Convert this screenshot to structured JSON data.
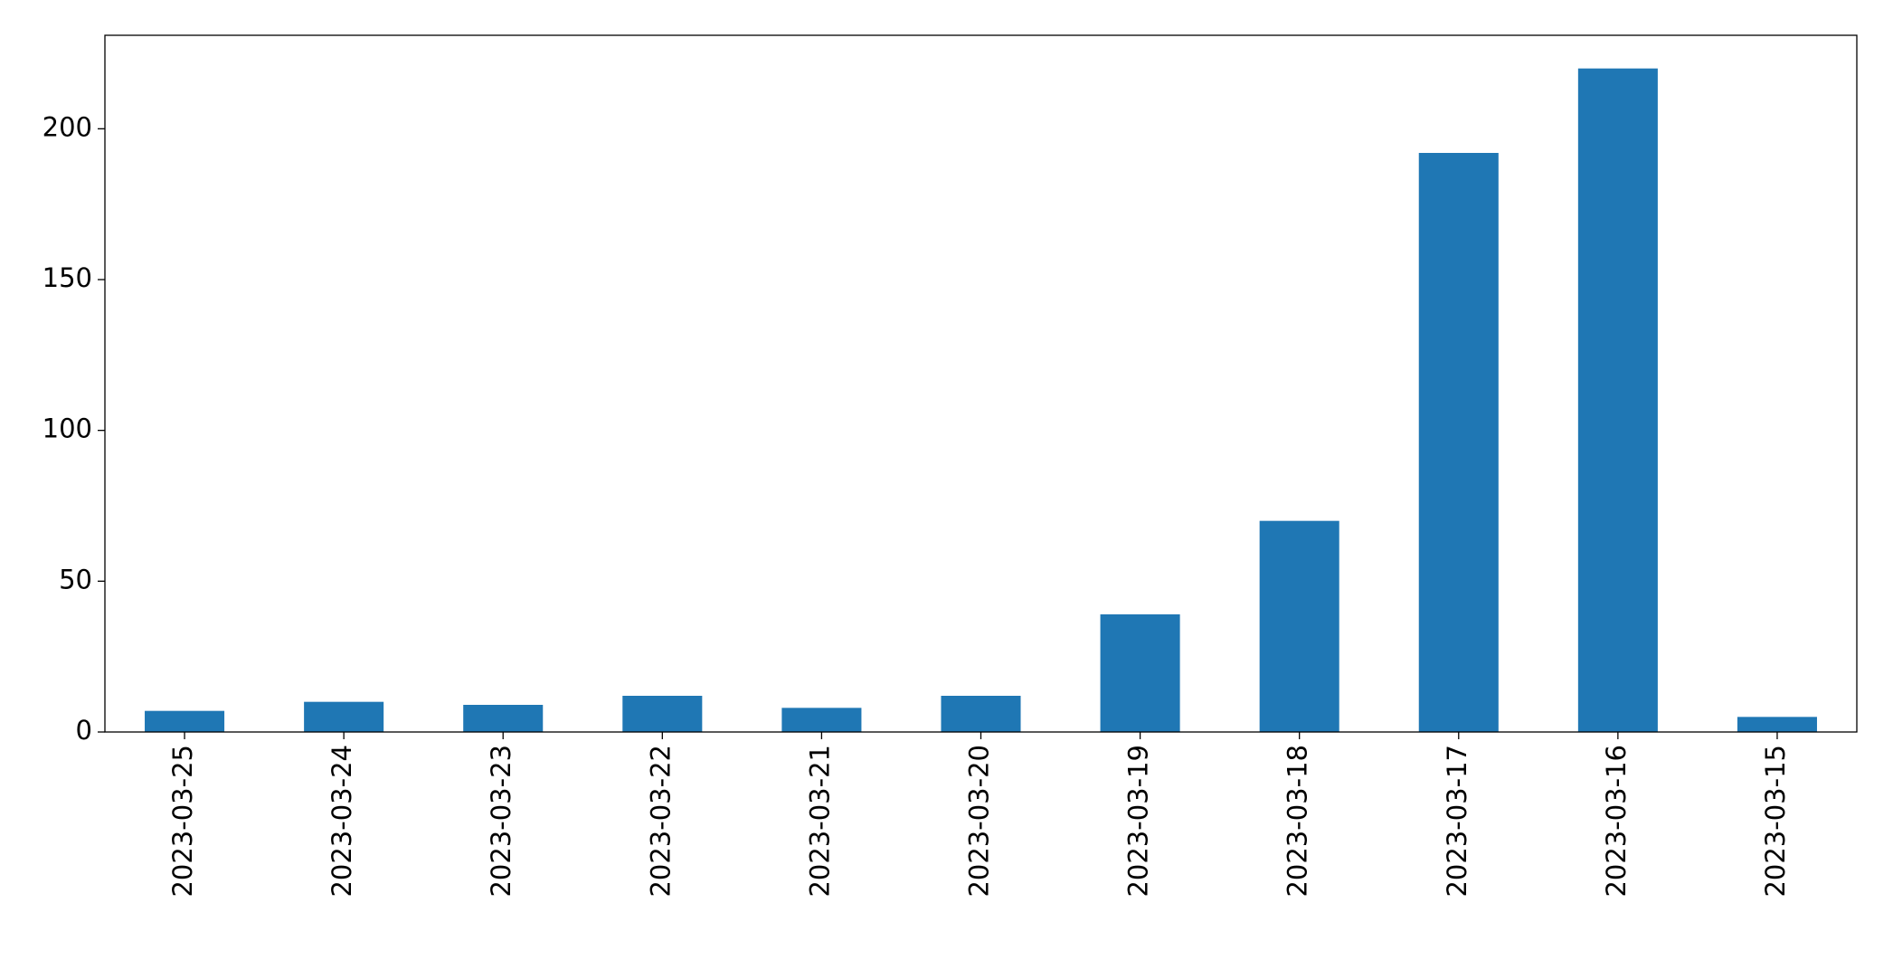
{
  "chart_data": {
    "type": "bar",
    "categories": [
      "2023-03-25",
      "2023-03-24",
      "2023-03-23",
      "2023-03-22",
      "2023-03-21",
      "2023-03-20",
      "2023-03-19",
      "2023-03-18",
      "2023-03-17",
      "2023-03-16",
      "2023-03-15"
    ],
    "values": [
      7,
      10,
      9,
      12,
      8,
      12,
      39,
      70,
      192,
      220,
      5
    ],
    "color": "#1f77b4",
    "ylim": [
      0,
      231
    ],
    "yticks": [
      0,
      50,
      100,
      150,
      200
    ],
    "grid": false
  }
}
